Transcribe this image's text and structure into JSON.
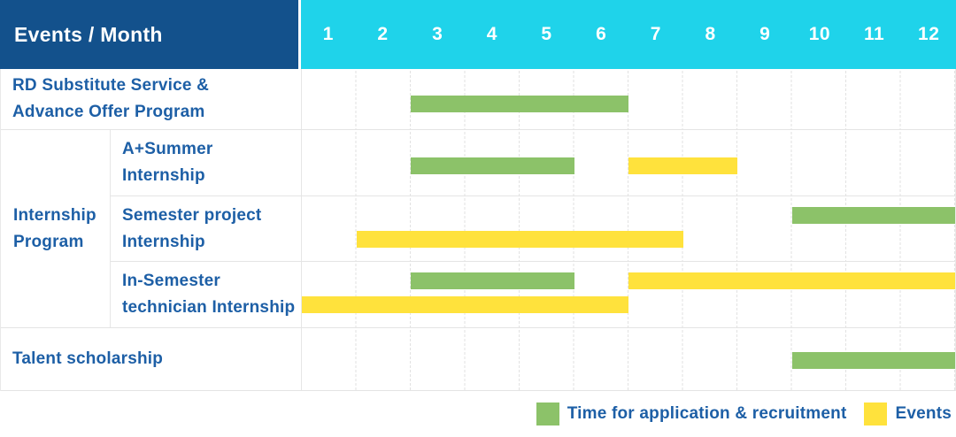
{
  "colors": {
    "header_bg": "#13518C",
    "months_bg": "#1FD3EA",
    "text_blue": "#1D5FA6",
    "green": "#8CC269",
    "yellow": "#FFE23C"
  },
  "header": {
    "title": "Events / Month",
    "months": [
      "1",
      "2",
      "3",
      "4",
      "5",
      "6",
      "7",
      "8",
      "9",
      "10",
      "11",
      "12"
    ]
  },
  "rows": {
    "rd": {
      "label": "RD Substitute Service &\nAdvance Offer Program",
      "bars": [
        {
          "type": "green",
          "start_month": 3,
          "end_month": 6
        }
      ]
    },
    "internship": {
      "label": "Internship\nProgram",
      "children": {
        "a_summer": {
          "label": "A+Summer\nInternship",
          "bars": [
            {
              "type": "green",
              "start_month": 3,
              "end_month": 5
            },
            {
              "type": "yellow",
              "start_month": 7,
              "end_month": 8
            }
          ]
        },
        "semester_project": {
          "label": "Semester project\nInternship",
          "bars": [
            {
              "type": "green",
              "start_month": 10,
              "end_month": 12
            },
            {
              "type": "yellow",
              "start_month": 2,
              "end_month": 7
            }
          ]
        },
        "in_semester": {
          "label": "In-Semester\ntechnician Internship",
          "bars": [
            {
              "type": "green",
              "start_month": 3,
              "end_month": 5
            },
            {
              "type": "yellow",
              "start_month": 7,
              "end_month": 12
            },
            {
              "type": "yellow",
              "start_month": 1,
              "end_month": 6
            }
          ]
        }
      }
    },
    "talent": {
      "label": "Talent scholarship",
      "bars": [
        {
          "type": "green",
          "start_month": 10,
          "end_month": 12
        }
      ]
    }
  },
  "legend": {
    "items": [
      {
        "type": "green",
        "label": "Time for application & recruitment"
      },
      {
        "type": "yellow",
        "label": "Events"
      }
    ]
  },
  "chart_data": {
    "type": "bar",
    "subtype": "gantt",
    "title": "Events / Month",
    "x_axis": {
      "label": "Month",
      "ticks": [
        1,
        2,
        3,
        4,
        5,
        6,
        7,
        8,
        9,
        10,
        11,
        12
      ],
      "range": [
        1,
        12
      ]
    },
    "legend_entries": [
      "Time for application & recruitment",
      "Events"
    ],
    "legend_position": "bottom-right",
    "grid": true,
    "series": [
      {
        "name": "RD Substitute Service & Advance Offer Program",
        "segments": [
          {
            "kind": "Time for application & recruitment",
            "start_month": 3,
            "end_month": 6
          }
        ]
      },
      {
        "name": "Internship Program / A+Summer Internship",
        "segments": [
          {
            "kind": "Time for application & recruitment",
            "start_month": 3,
            "end_month": 5
          },
          {
            "kind": "Events",
            "start_month": 7,
            "end_month": 8
          }
        ]
      },
      {
        "name": "Internship Program / Semester project Internship",
        "segments": [
          {
            "kind": "Time for application & recruitment",
            "start_month": 10,
            "end_month": 12
          },
          {
            "kind": "Events",
            "start_month": 2,
            "end_month": 7
          }
        ]
      },
      {
        "name": "Internship Program / In-Semester technician Internship",
        "segments": [
          {
            "kind": "Time for application & recruitment",
            "start_month": 3,
            "end_month": 5
          },
          {
            "kind": "Events",
            "start_month": 7,
            "end_month": 12
          },
          {
            "kind": "Events",
            "start_month": 1,
            "end_month": 6
          }
        ]
      },
      {
        "name": "Talent scholarship",
        "segments": [
          {
            "kind": "Time for application & recruitment",
            "start_month": 10,
            "end_month": 12
          }
        ]
      }
    ]
  }
}
